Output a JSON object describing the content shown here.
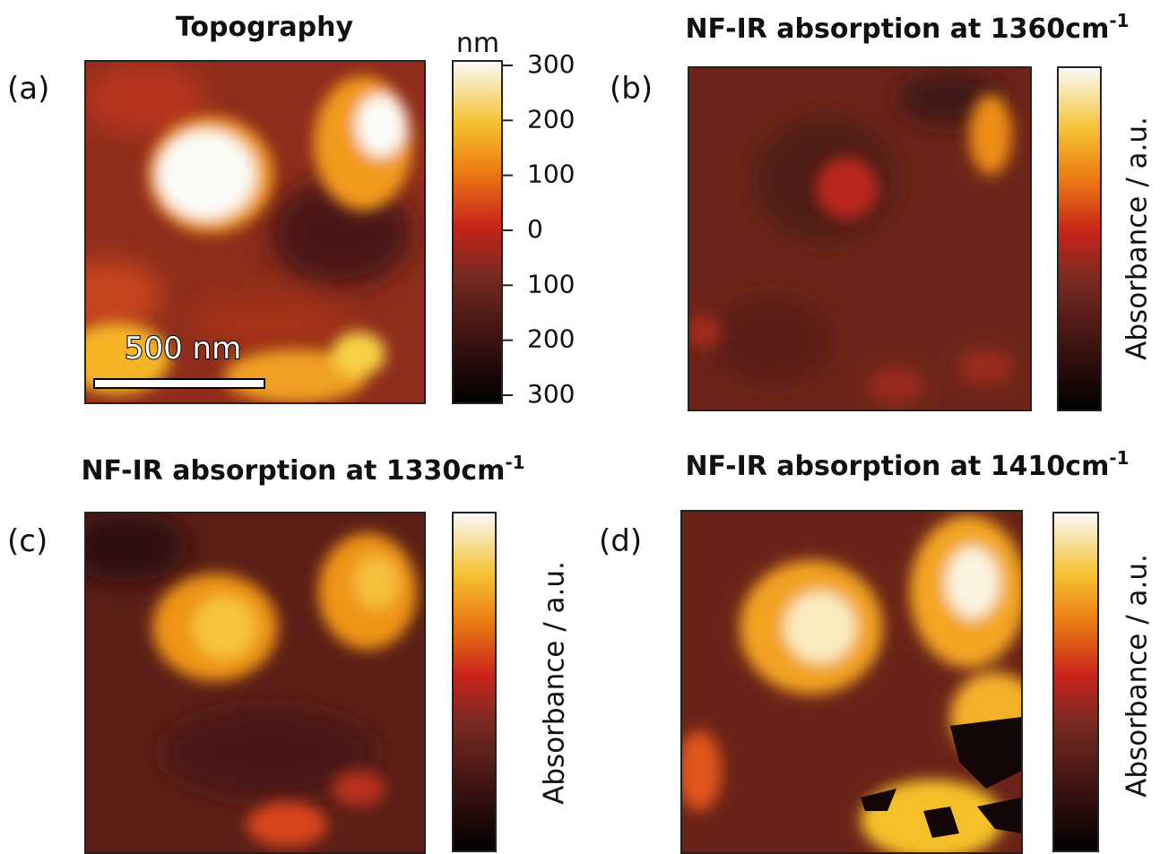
{
  "panels": [
    {
      "label": "(a)",
      "title": "Topography",
      "colorbar": {
        "unit": "nm",
        "ticks": [
          300,
          200,
          100,
          0,
          100,
          200,
          300
        ]
      },
      "scalebar": "500 nm"
    },
    {
      "label": "(b)",
      "title": {
        "text": "NF-IR absorption at 1360cm",
        "superscript": "-1"
      },
      "colorbar": {
        "axis_label": "Absorbance / a.u."
      }
    },
    {
      "label": "(c)",
      "title": {
        "text": "NF-IR absorption at 1330cm",
        "superscript": "-1"
      },
      "colorbar": {
        "axis_label": "Absorbance / a.u."
      }
    },
    {
      "label": "(d)",
      "title": {
        "text": "NF-IR absorption at 1410cm",
        "superscript": "-1"
      },
      "colorbar": {
        "axis_label": "Absorbance / a.u."
      }
    }
  ]
}
